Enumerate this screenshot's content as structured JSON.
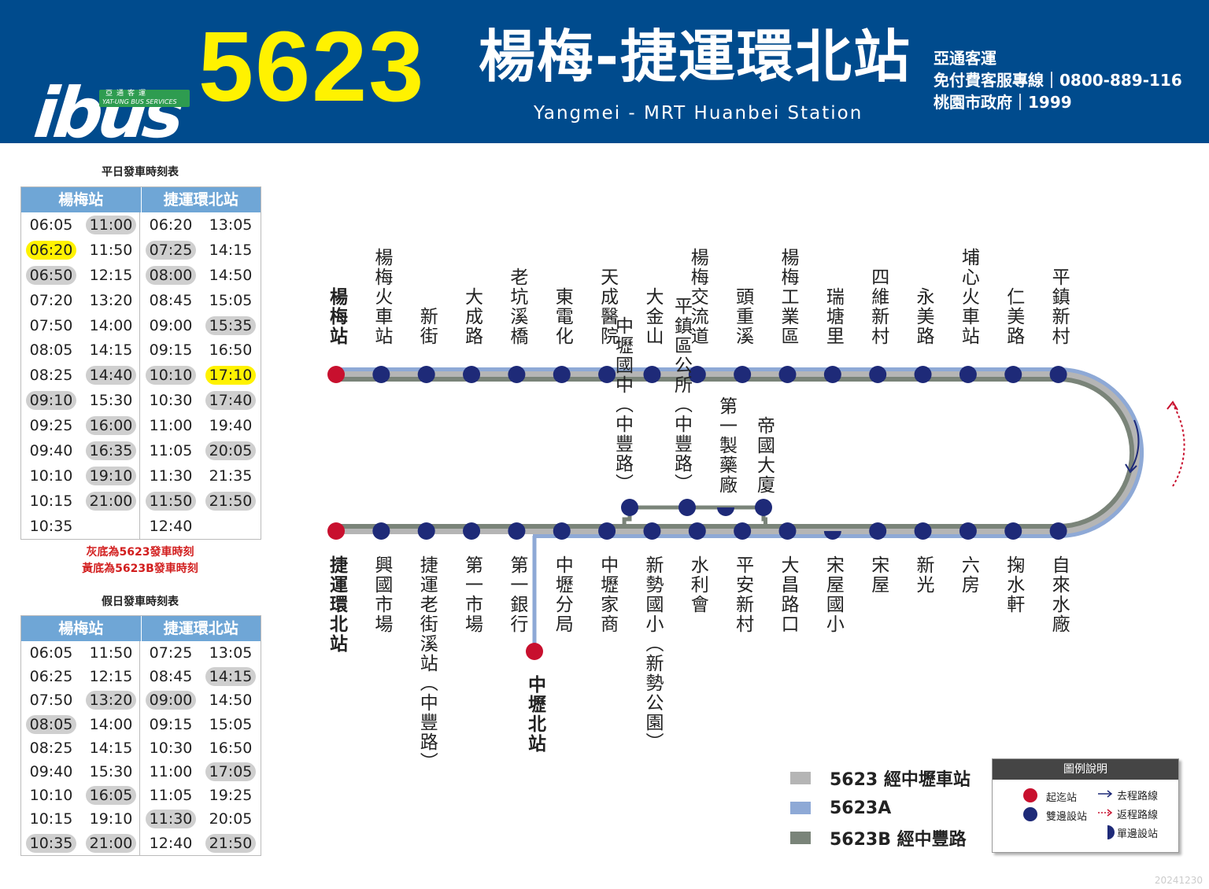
{
  "header": {
    "logo_text": "ibus",
    "logo_sub_cn": "亞通客運",
    "logo_sub_en": "YAT-UNG BUS SERVICES",
    "route_number": "5623",
    "route_name_cn": "楊梅-捷運環北站",
    "route_name_en": "Yangmei - MRT Huanbei Station",
    "contact_line1": "亞通客運",
    "contact_line2": "免付費客服專線｜0800-889-116",
    "contact_line3": "桃園市政府｜1999"
  },
  "weekday": {
    "title": "平日發車時刻表",
    "col1": "楊梅站",
    "col2": "捷運環北站",
    "rows": [
      [
        [
          "06:05",
          ""
        ],
        [
          "11:00",
          "g"
        ],
        [
          "06:20",
          ""
        ],
        [
          "13:05",
          ""
        ]
      ],
      [
        [
          "06:20",
          "y"
        ],
        [
          "11:50",
          ""
        ],
        [
          "07:25",
          "g"
        ],
        [
          "14:15",
          ""
        ]
      ],
      [
        [
          "06:50",
          "g"
        ],
        [
          "12:15",
          ""
        ],
        [
          "08:00",
          "g"
        ],
        [
          "14:50",
          ""
        ]
      ],
      [
        [
          "07:20",
          ""
        ],
        [
          "13:20",
          ""
        ],
        [
          "08:45",
          ""
        ],
        [
          "15:05",
          ""
        ]
      ],
      [
        [
          "07:50",
          ""
        ],
        [
          "14:00",
          ""
        ],
        [
          "09:00",
          ""
        ],
        [
          "15:35",
          "g"
        ]
      ],
      [
        [
          "08:05",
          ""
        ],
        [
          "14:15",
          ""
        ],
        [
          "09:15",
          ""
        ],
        [
          "16:50",
          ""
        ]
      ],
      [
        [
          "08:25",
          ""
        ],
        [
          "14:40",
          "g"
        ],
        [
          "10:10",
          "g"
        ],
        [
          "17:10",
          "y"
        ]
      ],
      [
        [
          "09:10",
          "g"
        ],
        [
          "15:30",
          ""
        ],
        [
          "10:30",
          ""
        ],
        [
          "17:40",
          "g"
        ]
      ],
      [
        [
          "09:25",
          ""
        ],
        [
          "16:00",
          "g"
        ],
        [
          "11:00",
          ""
        ],
        [
          "19:40",
          ""
        ]
      ],
      [
        [
          "09:40",
          ""
        ],
        [
          "16:35",
          "g"
        ],
        [
          "11:05",
          ""
        ],
        [
          "20:05",
          "g"
        ]
      ],
      [
        [
          "10:10",
          ""
        ],
        [
          "19:10",
          "g"
        ],
        [
          "11:30",
          ""
        ],
        [
          "21:35",
          ""
        ]
      ],
      [
        [
          "10:15",
          ""
        ],
        [
          "21:00",
          "g"
        ],
        [
          "11:50",
          "g"
        ],
        [
          "21:50",
          "g"
        ]
      ],
      [
        [
          "10:35",
          ""
        ],
        [
          "",
          ""
        ],
        [
          "12:40",
          ""
        ],
        [
          "",
          ""
        ]
      ]
    ]
  },
  "notes": {
    "gray": "灰底為5623發車時刻",
    "yellow": "黃底為5623B發車時刻"
  },
  "holiday": {
    "title": "假日發車時刻表",
    "col1": "楊梅站",
    "col2": "捷運環北站",
    "rows": [
      [
        [
          "06:05",
          ""
        ],
        [
          "11:50",
          ""
        ],
        [
          "07:25",
          ""
        ],
        [
          "13:05",
          ""
        ]
      ],
      [
        [
          "06:25",
          ""
        ],
        [
          "12:15",
          ""
        ],
        [
          "08:45",
          ""
        ],
        [
          "14:15",
          "g"
        ]
      ],
      [
        [
          "07:50",
          ""
        ],
        [
          "13:20",
          "g"
        ],
        [
          "09:00",
          "g"
        ],
        [
          "14:50",
          ""
        ]
      ],
      [
        [
          "08:05",
          "g"
        ],
        [
          "14:00",
          ""
        ],
        [
          "09:15",
          ""
        ],
        [
          "15:05",
          ""
        ]
      ],
      [
        [
          "08:25",
          ""
        ],
        [
          "14:15",
          ""
        ],
        [
          "10:30",
          ""
        ],
        [
          "16:50",
          ""
        ]
      ],
      [
        [
          "09:40",
          ""
        ],
        [
          "15:30",
          ""
        ],
        [
          "11:00",
          ""
        ],
        [
          "17:05",
          "g"
        ]
      ],
      [
        [
          "10:10",
          ""
        ],
        [
          "16:05",
          "g"
        ],
        [
          "11:05",
          ""
        ],
        [
          "19:25",
          ""
        ]
      ],
      [
        [
          "10:15",
          ""
        ],
        [
          "19:10",
          ""
        ],
        [
          "11:30",
          "g"
        ],
        [
          "20:05",
          ""
        ]
      ],
      [
        [
          "10:35",
          "g"
        ],
        [
          "21:00",
          "g"
        ],
        [
          "12:40",
          ""
        ],
        [
          "21:50",
          "g"
        ]
      ]
    ]
  },
  "map": {
    "top_terminal": "楊梅站",
    "top_stops": [
      "楊梅火車站",
      "新街",
      "大成路",
      "老坑溪橋",
      "東電化",
      "天成醫院",
      "大金山",
      "楊梅交流道",
      "頭重溪",
      "楊梅工業區",
      "瑞塘里",
      "四維新村",
      "永美路",
      "埔心火車站",
      "仁美路",
      "平鎮新村"
    ],
    "bottom_terminal": "捷運環北站",
    "bottom_stops": [
      "興國市場",
      "捷運老街溪站（中豐路）",
      "第一市場",
      "第一銀行",
      "中壢分局",
      "中壢家商",
      "新勢國小（新勢公園）",
      "水利會",
      "平安新村",
      "大昌路口",
      "宋屋國小",
      "宋屋",
      "新光",
      "六房",
      "掬水軒",
      "自來水廠"
    ],
    "branch_b_stops": [
      "中壢國中（中豐路）",
      "平鎮區公所（中豐路）",
      "第一製藥廠",
      "帝國大廈"
    ],
    "branch_a_terminal": "中壢北站",
    "colors": {
      "terminal": "#c8102e",
      "stop": "#1e2a78",
      "route_5623": "#b5b5b5",
      "route_5623A": "#8ea9d6",
      "route_5623B": "#7a8479",
      "arrow_return": "#c8102e"
    }
  },
  "legend": {
    "route_5623": "5623  經中壢車站",
    "route_5623A": "5623A",
    "route_5623B": "5623B  經中豐路",
    "box_title": "圖例說明",
    "terminal": "起迄站",
    "both_sides": "雙邊設站",
    "one_side": "單邊設站",
    "outbound": "去程路線",
    "return": "返程路線"
  },
  "date_code": "20241230"
}
